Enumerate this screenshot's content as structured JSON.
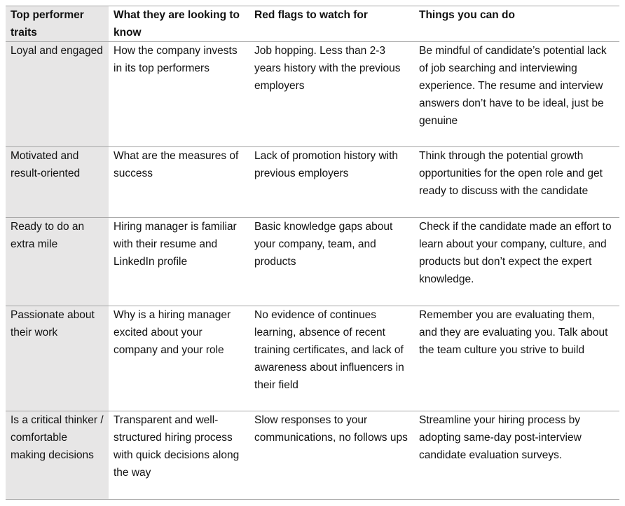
{
  "table": {
    "header": [
      "Top performer traits",
      "What they are looking to know",
      "Red flags to watch for",
      "Things you can do"
    ],
    "rows": [
      [
        "Loyal and engaged",
        "How the company invests in its top performers",
        "Job hopping. Less than 2-3 years history with the previous employers",
        "Be mindful of candidate’s potential lack of job searching and interviewing experience. The resume and interview answers don’t have to be ideal, just be genuine"
      ],
      [
        "Motivated and result-oriented",
        "What are the measures of success",
        "Lack of promotion history with previous employers",
        "Think through the potential growth opportunities for the open role and get ready to discuss with the candidate"
      ],
      [
        "Ready to do an extra mile",
        "Hiring manager is familiar with their resume and LinkedIn profile",
        "Basic knowledge gaps about your company, team, and products",
        "Check if the candidate made an effort to learn about your company, culture, and products but don’t expect the expert knowledge."
      ],
      [
        "Passionate about their work",
        "Why is a hiring manager excited about your company and your role",
        "No evidence of continues learning, absence of recent training certificates, and lack of awareness about influencers in their field",
        "Remember you are evaluating them, and they are evaluating you. Talk about the team culture you strive to build"
      ],
      [
        "Is a critical thinker / comfortable making decisions",
        "Transparent and well-structured hiring process with quick decisions along the way",
        "Slow responses to your communications, no follows ups",
        "Streamline your hiring process by adopting same-day post-interview candidate evaluation surveys."
      ]
    ]
  }
}
